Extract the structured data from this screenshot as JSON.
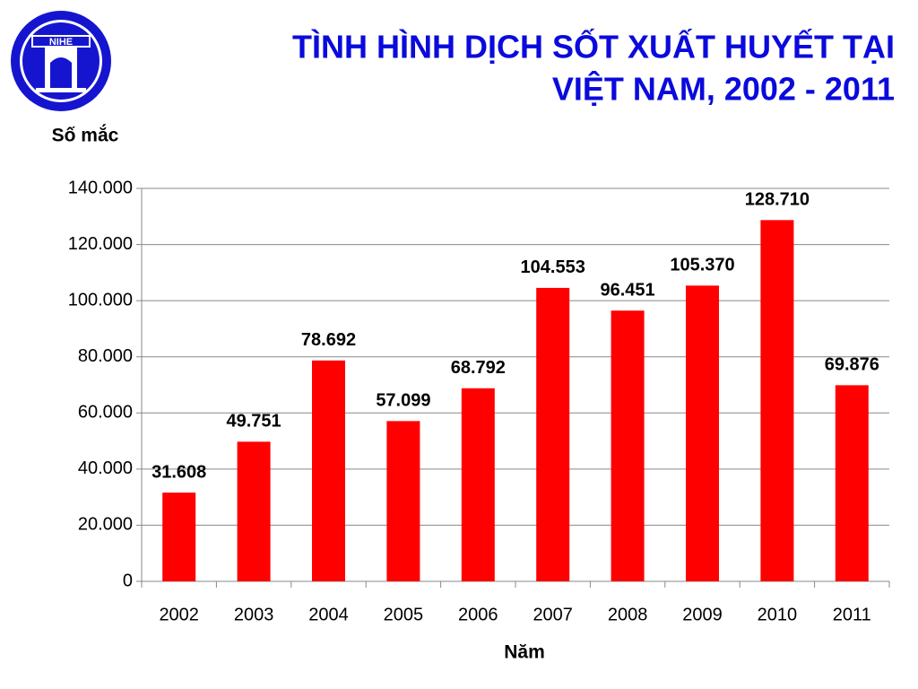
{
  "logo": {
    "text": "NIHE"
  },
  "chart_data": {
    "type": "bar",
    "title": [
      "TÌNH HÌNH DỊCH SỐT XUẤT HUYẾT TẠI",
      "VIỆT NAM, 2002 - 2011"
    ],
    "y_label": "Số mắc",
    "x_label": "Năm",
    "categories": [
      "2002",
      "2003",
      "2004",
      "2005",
      "2006",
      "2007",
      "2008",
      "2009",
      "2010",
      "2011"
    ],
    "values": [
      31608,
      49751,
      78692,
      57099,
      68792,
      104553,
      96451,
      105370,
      128710,
      69876
    ],
    "value_labels": [
      "31.608",
      "49.751",
      "78.692",
      "57.099",
      "68.792",
      "104.553",
      "96.451",
      "105.370",
      "128.710",
      "69.876"
    ],
    "color": "#ff0000",
    "ylim": [
      0,
      140000
    ],
    "yticks": [
      0,
      {
        "value": 20000,
        "label": "20.000"
      },
      {
        "value": 40000,
        "label": "40.000"
      },
      {
        "value": 60000,
        "label": "60.000"
      },
      {
        "value": 80000,
        "label": "80.000"
      },
      {
        "value": 100000,
        "label": "100.000"
      },
      {
        "value": 120000,
        "label": "120.000"
      },
      {
        "value": 140000,
        "label": "140.000"
      }
    ],
    "grid": true
  }
}
